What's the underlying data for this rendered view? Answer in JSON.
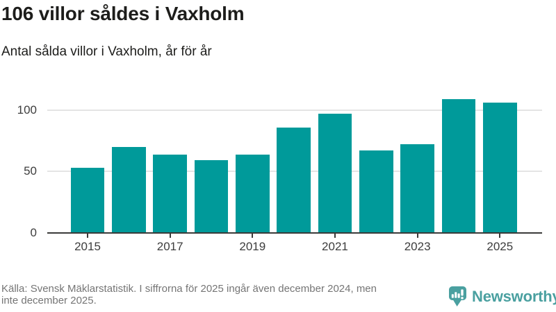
{
  "header": {
    "title": "106 villor såldes i Vaxholm",
    "subtitle": "Antal sålda villor i Vaxholm, år för år"
  },
  "chart_data": {
    "type": "bar",
    "title": "106 villor såldes i Vaxholm",
    "subtitle": "Antal sålda villor i Vaxholm, år för år",
    "categories": [
      "2015",
      "2016",
      "2017",
      "2018",
      "2019",
      "2020",
      "2021",
      "2022",
      "2023",
      "2024",
      "2025"
    ],
    "values": [
      53,
      70,
      64,
      59,
      64,
      86,
      97,
      67,
      72,
      109,
      106
    ],
    "xlabel": "",
    "ylabel": "",
    "y_ticks": [
      0,
      50,
      100
    ],
    "x_tick_labels": [
      "2015",
      "2017",
      "2019",
      "2021",
      "2023",
      "2025"
    ],
    "ylim": [
      0,
      114
    ],
    "grid": "horizontal-only",
    "legend": "none",
    "bar_color": "#009a9a"
  },
  "footer": {
    "line1": "Källa: Svensk Mäklarstatistik. I siffrorna för 2025 ingår även december 2024, men",
    "line2": "inte december 2025.",
    "brand": "Newsworthy"
  },
  "colors": {
    "bar": "#009a9a",
    "title_text": "#1d1d1b",
    "axis_text": "#3d3d3d",
    "axis_line": "#3a3a39",
    "gridline": "#e4e4e4",
    "footer_text": "#757575",
    "brand_teal": "#4aa0a0"
  }
}
